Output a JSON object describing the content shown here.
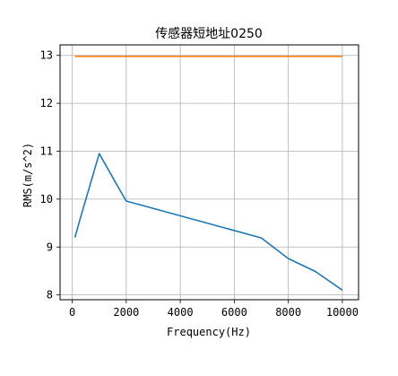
{
  "chart_data": {
    "type": "line",
    "title": "传感器短地址0250",
    "xlabel": "Frequency(Hz)",
    "ylabel": "RMS(m/s^2)",
    "xlim": [
      -450,
      10600
    ],
    "ylim": [
      7.9,
      13.22
    ],
    "xticks": [
      0,
      2000,
      4000,
      6000,
      8000,
      10000
    ],
    "xtick_labels": [
      "0",
      "2000",
      "4000",
      "6000",
      "8000",
      "10000"
    ],
    "yticks": [
      8,
      9,
      10,
      11,
      12,
      13
    ],
    "ytick_labels": [
      "8",
      "9",
      "10",
      "11",
      "12",
      "13"
    ],
    "grid": true,
    "series": [
      {
        "color": "#1f77b4",
        "x": [
          100,
          300,
          1000,
          1700,
          2000,
          7000,
          8000,
          9000,
          10000
        ],
        "y": [
          9.2,
          9.6,
          10.95,
          10.25,
          9.96,
          9.19,
          8.76,
          8.49,
          8.1
        ]
      },
      {
        "color": "#ff7f0e",
        "x": [
          100,
          10000
        ],
        "y": [
          12.98,
          12.98
        ]
      }
    ]
  }
}
